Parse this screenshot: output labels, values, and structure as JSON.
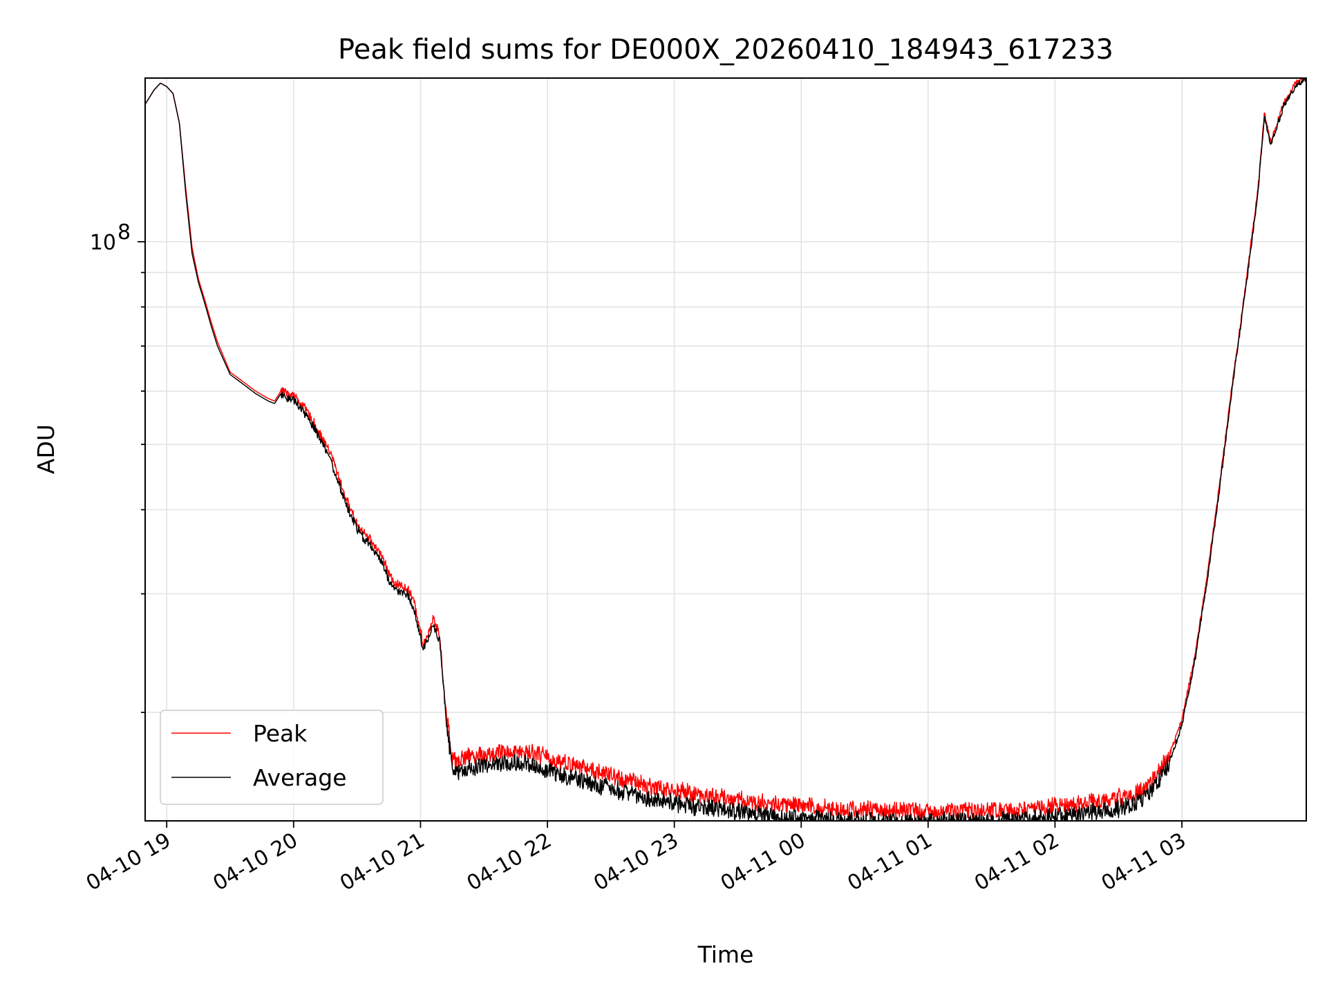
{
  "chart_data": {
    "type": "line",
    "title": "Peak field sums for DE000X_20260410_184943_617233",
    "xlabel": "Time",
    "ylabel": "ADU",
    "yscale": "log",
    "ylim": [
      13800000,
      175000000
    ],
    "xlim_hours": [
      -0.17,
      8.98
    ],
    "grid": true,
    "x_ticks": [
      {
        "value": 0,
        "label": "04-10 19"
      },
      {
        "value": 1,
        "label": "04-10 20"
      },
      {
        "value": 2,
        "label": "04-10 21"
      },
      {
        "value": 3,
        "label": "04-10 22"
      },
      {
        "value": 4,
        "label": "04-10 23"
      },
      {
        "value": 5,
        "label": "04-11 00"
      },
      {
        "value": 6,
        "label": "04-11 01"
      },
      {
        "value": 7,
        "label": "04-11 02"
      },
      {
        "value": 8,
        "label": "04-11 03"
      }
    ],
    "y_major_ticks": [
      {
        "value": 100000000,
        "base": "10",
        "exp": "8"
      }
    ],
    "y_minor_ticks": [
      20000000,
      30000000,
      40000000,
      50000000,
      60000000,
      70000000,
      80000000,
      90000000
    ],
    "legend_position": "lower-left",
    "series": [
      {
        "name": "Peak",
        "color": "#ff0000",
        "x_hours": [
          -0.17,
          -0.1,
          -0.05,
          0.0,
          0.05,
          0.1,
          0.15,
          0.2,
          0.25,
          0.3,
          0.35,
          0.4,
          0.5,
          0.6,
          0.7,
          0.8,
          0.85,
          0.9,
          1.0,
          1.1,
          1.2,
          1.3,
          1.4,
          1.5,
          1.6,
          1.7,
          1.75,
          1.8,
          1.9,
          1.95,
          2.0,
          2.02,
          2.1,
          2.15,
          2.2,
          2.25,
          2.3,
          2.4,
          2.5,
          2.7,
          2.9,
          3.0,
          3.2,
          3.4,
          3.6,
          3.8,
          4.0,
          4.2,
          4.4,
          4.6,
          4.8,
          5.0,
          5.2,
          5.4,
          5.6,
          5.8,
          6.0,
          6.2,
          6.4,
          6.6,
          6.8,
          7.0,
          7.2,
          7.4,
          7.6,
          7.7,
          7.8,
          7.9,
          8.0,
          8.1,
          8.2,
          8.3,
          8.4,
          8.5,
          8.6,
          8.65,
          8.7,
          8.8,
          8.9,
          8.98
        ],
        "y": [
          160000000,
          168000000,
          172000000,
          170000000,
          166000000,
          150000000,
          120000000,
          98000000,
          88000000,
          82000000,
          76000000,
          71000000,
          64000000,
          62000000,
          60000000,
          58500000,
          58000000,
          60000000,
          59000000,
          56000000,
          52000000,
          48000000,
          42000000,
          38000000,
          36000000,
          34000000,
          32000000,
          31000000,
          30500000,
          29000000,
          26500000,
          25000000,
          27500000,
          26000000,
          20000000,
          17000000,
          16900000,
          17200000,
          17200000,
          17400000,
          17300000,
          17000000,
          16600000,
          16200000,
          15800000,
          15450000,
          15200000,
          15000000,
          14820000,
          14650000,
          14500000,
          14400000,
          14300000,
          14250000,
          14220000,
          14200000,
          14150000,
          14170000,
          14200000,
          14230000,
          14300000,
          14400000,
          14550000,
          14700000,
          15000000,
          15300000,
          16000000,
          17200000,
          19500000,
          24000000,
          32000000,
          44000000,
          62000000,
          85000000,
          120000000,
          155000000,
          140000000,
          160000000,
          172000000,
          175000000
        ]
      },
      {
        "name": "Average",
        "color": "#000000",
        "x_hours": [
          -0.17,
          -0.1,
          -0.05,
          0.0,
          0.05,
          0.1,
          0.15,
          0.2,
          0.25,
          0.3,
          0.35,
          0.4,
          0.5,
          0.6,
          0.7,
          0.8,
          0.85,
          0.9,
          1.0,
          1.1,
          1.2,
          1.3,
          1.4,
          1.5,
          1.6,
          1.7,
          1.75,
          1.8,
          1.9,
          1.95,
          2.0,
          2.02,
          2.1,
          2.15,
          2.2,
          2.25,
          2.3,
          2.4,
          2.5,
          2.7,
          2.9,
          3.0,
          3.2,
          3.4,
          3.6,
          3.8,
          4.0,
          4.2,
          4.4,
          4.6,
          4.8,
          5.0,
          5.2,
          5.4,
          5.6,
          5.8,
          6.0,
          6.2,
          6.4,
          6.6,
          6.8,
          7.0,
          7.2,
          7.4,
          7.6,
          7.7,
          7.8,
          7.9,
          8.0,
          8.1,
          8.2,
          8.3,
          8.4,
          8.5,
          8.6,
          8.65,
          8.7,
          8.8,
          8.9,
          8.98
        ],
        "y": [
          160000000,
          168000000,
          172000000,
          170000000,
          166000000,
          150000000,
          118000000,
          96000000,
          87000000,
          81000000,
          75000000,
          70000000,
          63500000,
          61500000,
          59500000,
          58000000,
          57500000,
          59500000,
          58500000,
          55500000,
          51500000,
          47000000,
          41500000,
          37500000,
          35500000,
          33500000,
          31500000,
          30500000,
          30000000,
          28500000,
          26000000,
          24800000,
          27000000,
          25800000,
          19800000,
          16700000,
          16500000,
          16700000,
          16800000,
          16950000,
          16850000,
          16500000,
          16100000,
          15700000,
          15350000,
          15000000,
          14780000,
          14580000,
          14400000,
          14250000,
          14100000,
          14000000,
          13950000,
          13930000,
          13900000,
          13880000,
          13860000,
          13870000,
          13890000,
          13920000,
          13980000,
          14080000,
          14200000,
          14380000,
          14650000,
          15000000,
          15700000,
          16900000,
          19200000,
          23800000,
          31500000,
          43500000,
          61500000,
          84500000,
          119000000,
          154000000,
          139000000,
          159000000,
          171000000,
          175000000
        ]
      }
    ]
  }
}
